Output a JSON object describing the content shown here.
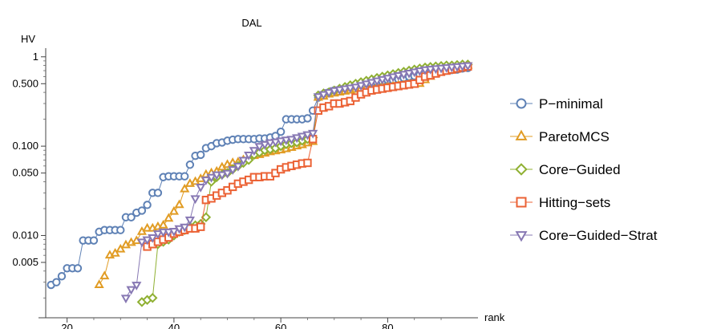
{
  "chart_data": {
    "type": "scatter",
    "title": "DAL",
    "xlabel": "rank",
    "ylabel": "HV",
    "y_scale": "log",
    "xlim": [
      16,
      96
    ],
    "ylim": [
      0.0012,
      1.25
    ],
    "x_ticks": [
      {
        "value": 20,
        "label": "20"
      },
      {
        "value": 40,
        "label": "40"
      },
      {
        "value": 60,
        "label": "60"
      },
      {
        "value": 80,
        "label": "80"
      }
    ],
    "y_ticks": [
      {
        "value": 1,
        "label": "1"
      },
      {
        "value": 0.5,
        "label": "0.500"
      },
      {
        "value": 0.1,
        "label": "0.100"
      },
      {
        "value": 0.05,
        "label": "0.050"
      },
      {
        "value": 0.01,
        "label": "0.010"
      },
      {
        "value": 0.005,
        "label": "0.005"
      }
    ],
    "legend_position": "right",
    "series": [
      {
        "name": "P−minimal",
        "color": "#5e81b5",
        "marker": "circle",
        "x": [
          17,
          18,
          19,
          20,
          21,
          22,
          23,
          24,
          25,
          26,
          27,
          28,
          29,
          30,
          31,
          32,
          33,
          34,
          35,
          36,
          37,
          38,
          39,
          40,
          41,
          42,
          43,
          44,
          45,
          46,
          47,
          48,
          49,
          50,
          51,
          52,
          53,
          54,
          55,
          56,
          57,
          58,
          59,
          60,
          61,
          62,
          63,
          64,
          65,
          66,
          67,
          68,
          69,
          70,
          71,
          72,
          73,
          74,
          75,
          76,
          77,
          78,
          79,
          80,
          81,
          82,
          83,
          84,
          85,
          86,
          87,
          88,
          89,
          90,
          91,
          92,
          93,
          94,
          95
        ],
        "y": [
          0.0028,
          0.003,
          0.0035,
          0.0043,
          0.0043,
          0.0043,
          0.0088,
          0.0088,
          0.0088,
          0.011,
          0.0115,
          0.0115,
          0.0115,
          0.0115,
          0.016,
          0.016,
          0.018,
          0.019,
          0.022,
          0.03,
          0.03,
          0.045,
          0.046,
          0.046,
          0.046,
          0.046,
          0.062,
          0.078,
          0.08,
          0.095,
          0.1,
          0.108,
          0.11,
          0.115,
          0.118,
          0.12,
          0.12,
          0.12,
          0.12,
          0.122,
          0.122,
          0.125,
          0.13,
          0.145,
          0.2,
          0.2,
          0.2,
          0.2,
          0.205,
          0.25,
          0.35,
          0.38,
          0.4,
          0.42,
          0.43,
          0.44,
          0.44,
          0.45,
          0.46,
          0.47,
          0.5,
          0.52,
          0.53,
          0.55,
          0.55,
          0.56,
          0.58,
          0.6,
          0.61,
          0.63,
          0.65,
          0.67,
          0.68,
          0.69,
          0.7,
          0.71,
          0.72,
          0.74,
          0.75
        ]
      },
      {
        "name": "ParetoMCS",
        "color": "#e19c24",
        "marker": "triangle-up",
        "x": [
          26,
          27,
          28,
          29,
          30,
          31,
          32,
          33,
          34,
          35,
          36,
          37,
          38,
          39,
          40,
          41,
          42,
          43,
          44,
          45,
          46,
          47,
          48,
          49,
          50,
          51,
          52,
          53,
          54,
          55,
          56,
          57,
          58,
          59,
          60,
          61,
          62,
          63,
          64,
          65,
          66,
          67,
          68,
          69,
          70,
          71,
          72,
          73,
          74,
          75,
          76,
          77,
          78,
          79,
          80,
          81,
          82,
          83,
          84,
          85,
          86,
          87,
          88,
          89,
          90,
          91,
          92,
          93,
          94,
          95
        ],
        "y": [
          0.0028,
          0.0035,
          0.006,
          0.0063,
          0.007,
          0.0078,
          0.0083,
          0.0087,
          0.011,
          0.012,
          0.012,
          0.0125,
          0.013,
          0.0155,
          0.0185,
          0.022,
          0.033,
          0.038,
          0.04,
          0.043,
          0.048,
          0.05,
          0.052,
          0.058,
          0.062,
          0.065,
          0.066,
          0.07,
          0.075,
          0.078,
          0.08,
          0.083,
          0.086,
          0.088,
          0.09,
          0.093,
          0.096,
          0.1,
          0.103,
          0.108,
          0.112,
          0.35,
          0.36,
          0.38,
          0.39,
          0.4,
          0.41,
          0.42,
          0.43,
          0.44,
          0.45,
          0.46,
          0.46,
          0.47,
          0.47,
          0.47,
          0.48,
          0.48,
          0.49,
          0.49,
          0.5,
          0.55,
          0.6,
          0.65,
          0.7,
          0.72,
          0.74,
          0.76,
          0.78,
          0.8
        ]
      },
      {
        "name": "Core−Guided",
        "color": "#8fb032",
        "marker": "diamond",
        "x": [
          34,
          35,
          36,
          37,
          38,
          39,
          40,
          41,
          42,
          43,
          44,
          45,
          46,
          47,
          48,
          49,
          50,
          51,
          52,
          53,
          54,
          55,
          56,
          57,
          58,
          59,
          60,
          61,
          62,
          63,
          64,
          65,
          66,
          67,
          68,
          69,
          70,
          71,
          72,
          73,
          74,
          75,
          76,
          77,
          78,
          79,
          80,
          81,
          82,
          83,
          84,
          85,
          86,
          87,
          88,
          89,
          90,
          91,
          92,
          93,
          94,
          95
        ],
        "y": [
          0.0018,
          0.0019,
          0.002,
          0.008,
          0.0085,
          0.009,
          0.01,
          0.011,
          0.0115,
          0.0125,
          0.013,
          0.0135,
          0.016,
          0.04,
          0.045,
          0.048,
          0.05,
          0.055,
          0.06,
          0.065,
          0.07,
          0.08,
          0.085,
          0.09,
          0.092,
          0.095,
          0.1,
          0.105,
          0.108,
          0.11,
          0.115,
          0.12,
          0.125,
          0.37,
          0.39,
          0.4,
          0.42,
          0.44,
          0.46,
          0.48,
          0.5,
          0.52,
          0.54,
          0.56,
          0.58,
          0.6,
          0.62,
          0.64,
          0.66,
          0.68,
          0.7,
          0.72,
          0.74,
          0.76,
          0.77,
          0.78,
          0.79,
          0.8,
          0.8,
          0.81,
          0.82,
          0.82
        ]
      },
      {
        "name": "Hitting−sets",
        "color": "#eb6235",
        "marker": "square",
        "x": [
          35,
          36,
          37,
          38,
          39,
          40,
          41,
          42,
          43,
          44,
          45,
          46,
          47,
          48,
          49,
          50,
          51,
          52,
          53,
          54,
          55,
          56,
          57,
          58,
          59,
          60,
          61,
          62,
          63,
          64,
          65,
          66,
          67,
          68,
          69,
          70,
          71,
          72,
          73,
          74,
          75,
          76,
          77,
          78,
          79,
          80,
          81,
          82,
          83,
          84,
          85,
          86,
          87,
          88,
          89,
          90,
          91,
          92,
          93,
          94,
          95
        ],
        "y": [
          0.0075,
          0.008,
          0.0085,
          0.009,
          0.0095,
          0.0105,
          0.011,
          0.0115,
          0.012,
          0.012,
          0.0125,
          0.025,
          0.026,
          0.028,
          0.03,
          0.032,
          0.035,
          0.038,
          0.04,
          0.042,
          0.045,
          0.045,
          0.046,
          0.046,
          0.05,
          0.055,
          0.058,
          0.06,
          0.062,
          0.064,
          0.065,
          0.12,
          0.25,
          0.27,
          0.28,
          0.3,
          0.3,
          0.31,
          0.32,
          0.35,
          0.38,
          0.4,
          0.42,
          0.43,
          0.44,
          0.45,
          0.46,
          0.47,
          0.48,
          0.49,
          0.5,
          0.55,
          0.6,
          0.62,
          0.65,
          0.68,
          0.7,
          0.72,
          0.74,
          0.76,
          0.78
        ]
      },
      {
        "name": "Core−Guided−Strat",
        "color": "#8778b3",
        "marker": "triangle-down",
        "x": [
          31,
          32,
          33,
          34,
          35,
          36,
          37,
          38,
          39,
          40,
          41,
          42,
          43,
          44,
          45,
          46,
          47,
          48,
          49,
          50,
          51,
          52,
          53,
          54,
          55,
          56,
          57,
          58,
          59,
          60,
          61,
          62,
          63,
          64,
          65,
          66,
          67,
          68,
          69,
          70,
          71,
          72,
          73,
          74,
          75,
          76,
          77,
          78,
          79,
          80,
          81,
          82,
          83,
          84,
          85,
          86,
          87,
          88,
          89,
          90,
          91,
          92,
          93,
          94,
          95
        ],
        "y": [
          0.002,
          0.0025,
          0.0028,
          0.0085,
          0.009,
          0.0095,
          0.0105,
          0.011,
          0.011,
          0.0112,
          0.012,
          0.0125,
          0.015,
          0.026,
          0.035,
          0.042,
          0.045,
          0.048,
          0.048,
          0.05,
          0.055,
          0.06,
          0.07,
          0.08,
          0.09,
          0.1,
          0.105,
          0.11,
          0.112,
          0.115,
          0.118,
          0.12,
          0.125,
          0.13,
          0.135,
          0.14,
          0.36,
          0.38,
          0.4,
          0.42,
          0.43,
          0.44,
          0.45,
          0.46,
          0.48,
          0.5,
          0.52,
          0.54,
          0.56,
          0.58,
          0.6,
          0.62,
          0.64,
          0.66,
          0.68,
          0.7,
          0.72,
          0.73,
          0.74,
          0.75,
          0.76,
          0.77,
          0.78,
          0.79,
          0.8
        ]
      }
    ]
  }
}
